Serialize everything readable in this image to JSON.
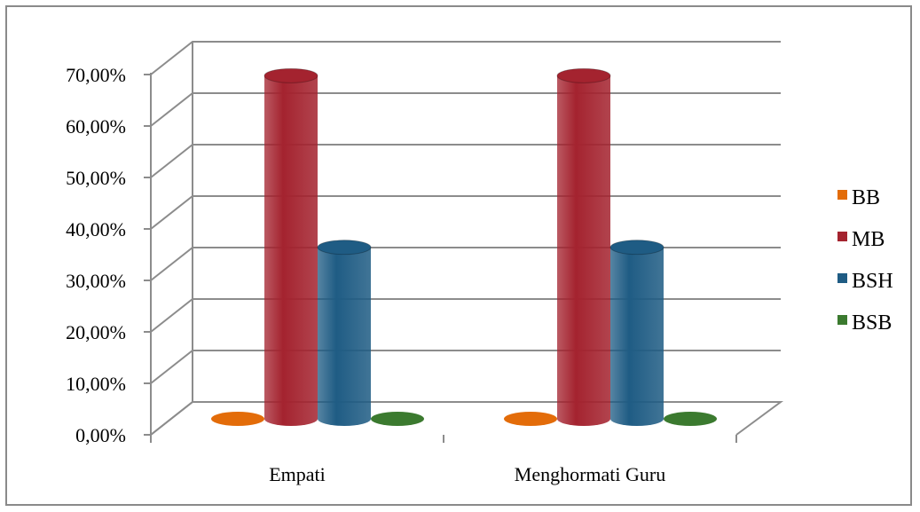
{
  "chart_data": {
    "type": "bar",
    "style": "3d-cylinder",
    "categories": [
      "Empati",
      "Menghormati Guru"
    ],
    "series": [
      {
        "name": "BB",
        "values": [
          0.0,
          0.0
        ],
        "color": "#E36C09"
      },
      {
        "name": "MB",
        "values": [
          66.67,
          66.67
        ],
        "color": "#A4232F"
      },
      {
        "name": "BSH",
        "values": [
          33.33,
          33.33
        ],
        "color": "#1F5C84"
      },
      {
        "name": "BSB",
        "values": [
          0.0,
          0.0
        ],
        "color": "#3B7A2F"
      }
    ],
    "yticks": [
      "0,00%",
      "10,00%",
      "20,00%",
      "30,00%",
      "40,00%",
      "50,00%",
      "60,00%",
      "70,00%"
    ],
    "ylim": [
      0,
      70
    ],
    "grid": true,
    "legend_position": "right"
  }
}
